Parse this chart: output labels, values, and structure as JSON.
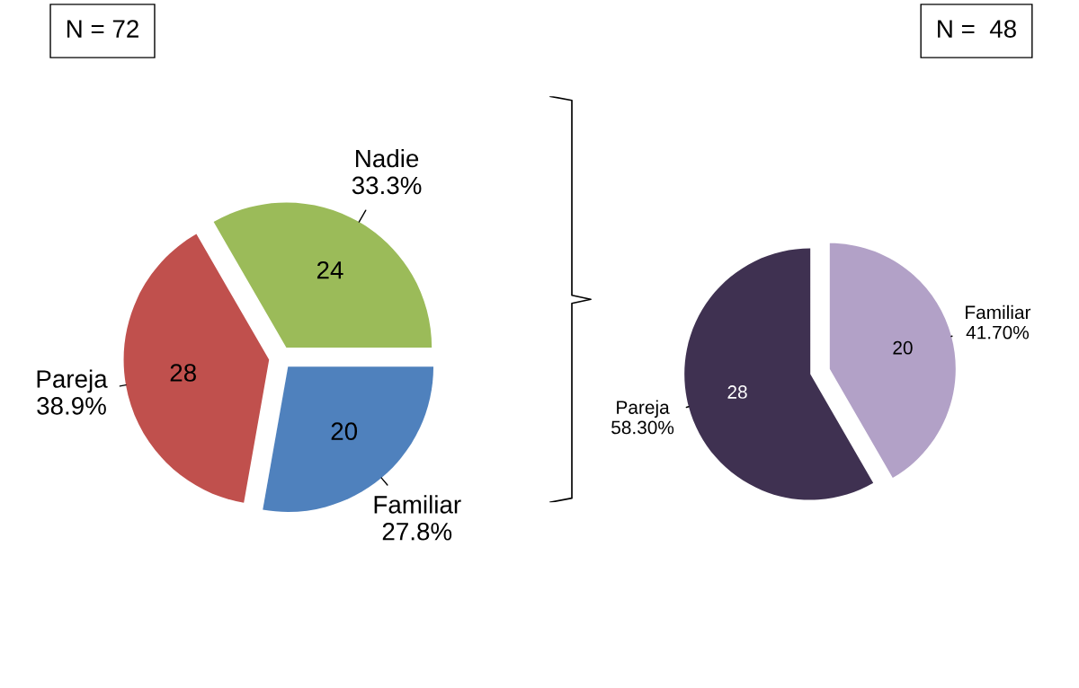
{
  "chart_data": [
    {
      "type": "pie",
      "title": "N = 72",
      "categories": [
        "Pareja",
        "Nadie",
        "Familiar"
      ],
      "values": [
        28,
        24,
        20
      ],
      "colors": [
        "#c0504d",
        "#9bbb59",
        "#4f81bd"
      ],
      "data_labels": true,
      "annotations": [
        "38.9%",
        "33.3%",
        "27.8%"
      ]
    },
    {
      "type": "pie",
      "title": "N =  48",
      "categories": [
        "Pareja",
        "Familiar"
      ],
      "values": [
        28,
        20
      ],
      "colors": [
        "#3f3151",
        "#b2a1c7"
      ],
      "data_labels": true,
      "annotations": [
        "58.30%",
        "41.70%"
      ]
    }
  ]
}
